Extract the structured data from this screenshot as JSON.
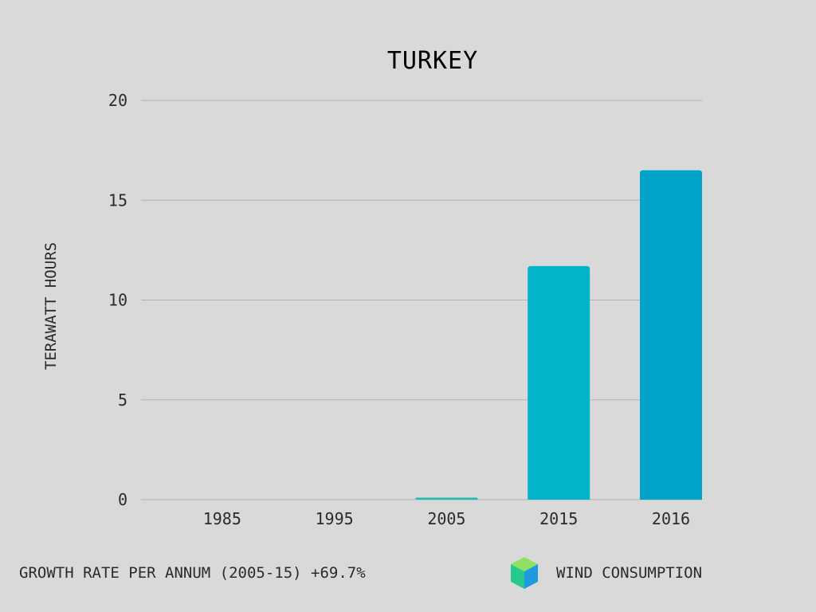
{
  "chart_data": {
    "type": "bar",
    "title": "TURKEY",
    "ylabel": "TERAWATT HOURS",
    "xlabel": "",
    "categories": [
      "1985",
      "1995",
      "2005",
      "2015",
      "2016"
    ],
    "values": [
      0,
      0,
      0.1,
      11.7,
      16.5
    ],
    "ylim": [
      0,
      20
    ],
    "yticks": [
      0,
      5,
      10,
      15,
      20
    ],
    "grid": true,
    "bar_colors": [
      "#00b8c9",
      "#00b8c9",
      "#1bc0b0",
      "#00b5c9",
      "#00a3c9"
    ],
    "legend": {
      "label": "WIND CONSUMPTION",
      "icon": "cube-icon",
      "placement": "bottom-right"
    }
  },
  "footer": {
    "growth_note": "GROWTH RATE PER ANNUM (2005-15) +69.7%"
  },
  "colors": {
    "background": "#d9d9d9",
    "gridline": "#b3b3b3",
    "text": "#2b2b2b"
  }
}
